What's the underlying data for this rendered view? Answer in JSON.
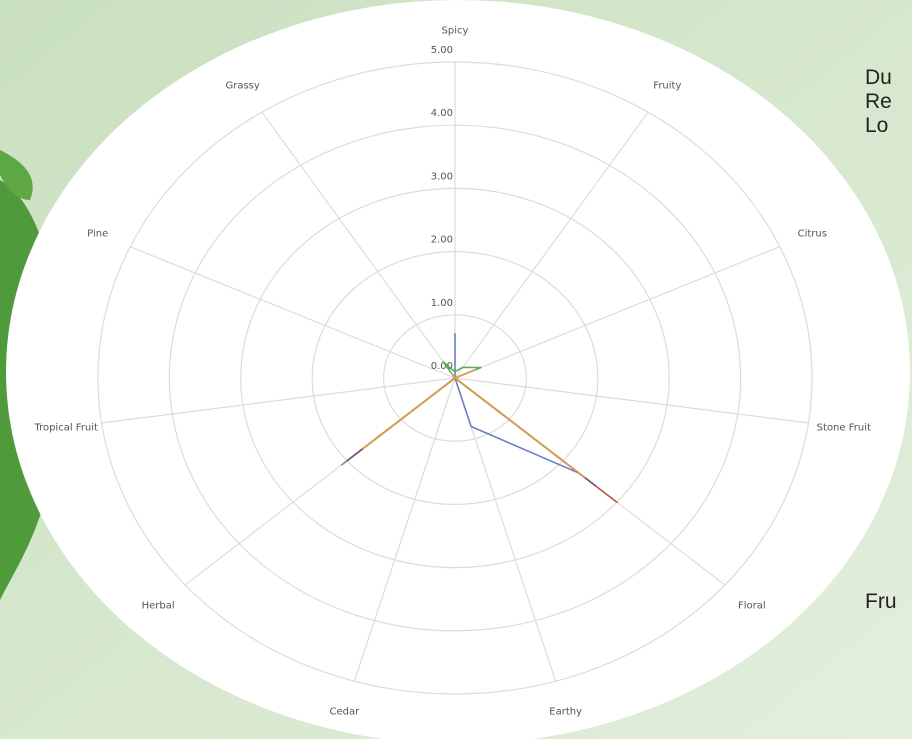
{
  "chart_data": {
    "type": "radar",
    "categories": [
      "Spicy",
      "Fruity",
      "Citrus",
      "Stone Fruit",
      "Floral",
      "Earthy",
      "Cedar",
      "Herbal",
      "Tropical Fruit",
      "Pine",
      "Grassy"
    ],
    "ylim": [
      0,
      5
    ],
    "yticks": [
      {
        "value": 0,
        "label": "0.00"
      },
      {
        "value": 1,
        "label": "1.00"
      },
      {
        "value": 2,
        "label": "2.00"
      },
      {
        "value": 3,
        "label": "3.00"
      },
      {
        "value": 4,
        "label": "4.00"
      },
      {
        "value": 5,
        "label": "5.00"
      }
    ],
    "grid": true,
    "series": [
      {
        "color": "#6b7fc7",
        "values": [
          0.7,
          0,
          0.2,
          0,
          2.3,
          0.8,
          0,
          1.6,
          0,
          0,
          0
        ]
      },
      {
        "color": "#c0504d",
        "values": [
          0,
          0,
          0,
          0,
          3.0,
          0,
          0,
          1.9,
          0,
          0,
          0
        ]
      },
      {
        "color": "#5cae4f",
        "values": [
          0.1,
          0.2,
          0.4,
          0,
          2.5,
          0,
          0,
          2.1,
          0,
          0,
          0.3
        ]
      },
      {
        "color": "#7a4a8c",
        "values": [
          0,
          0,
          0,
          0,
          2.6,
          0,
          0,
          2.0,
          0,
          0,
          0
        ]
      },
      {
        "color": "#e0a040",
        "values": [
          0,
          0,
          0.3,
          0,
          2.4,
          0,
          0,
          1.7,
          0,
          0,
          0.1
        ]
      }
    ]
  },
  "side_text": [
    "Du",
    "Re",
    "Lo",
    "Fru"
  ]
}
